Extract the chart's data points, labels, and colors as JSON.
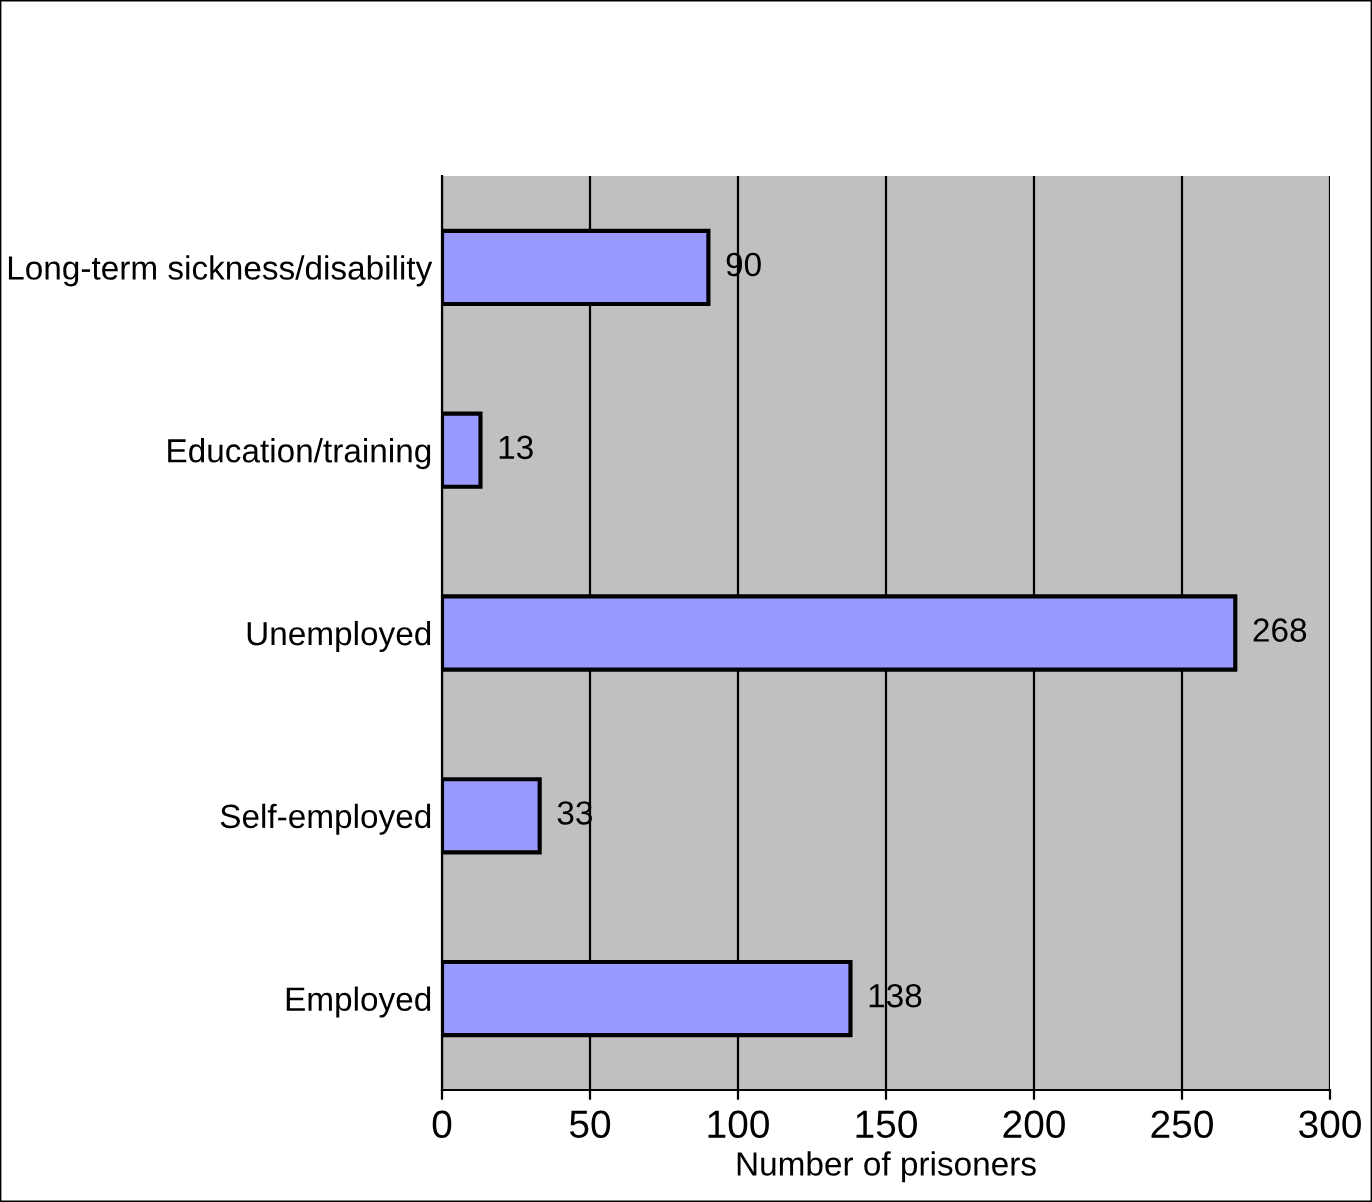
{
  "chart_data": {
    "type": "bar",
    "orientation": "horizontal",
    "xlabel": "Number of prisoners",
    "categories": [
      "Long-term sickness/disability",
      "Education/training",
      "Unemployed",
      "Self-employed",
      "Employed"
    ],
    "values": [
      90,
      13,
      268,
      33,
      138
    ],
    "color": "#9999ff",
    "data_labels": true,
    "xlim": [
      0,
      300
    ],
    "xticks": [
      0,
      50,
      100,
      150,
      200,
      250,
      300
    ],
    "grid": "x",
    "legend": false
  }
}
